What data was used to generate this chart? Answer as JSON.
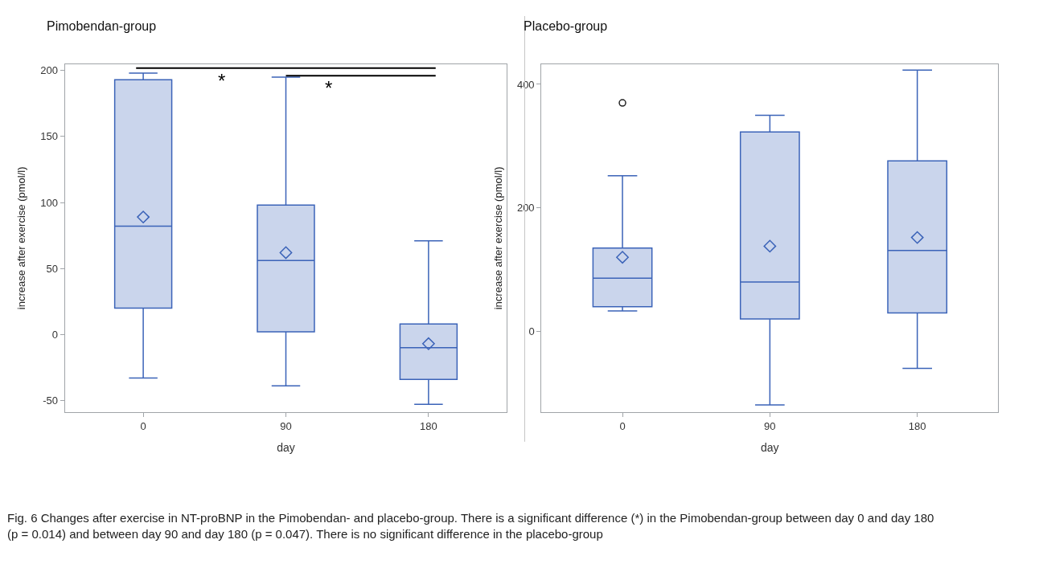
{
  "chart_data": [
    {
      "type": "box",
      "title": "Pimobendan-group",
      "xlabel": "day",
      "ylabel": "increase after exercise (pmol/l)",
      "categories": [
        "0",
        "90",
        "180"
      ],
      "ylim": [
        -59,
        205
      ],
      "yticks": [
        -50,
        0,
        50,
        100,
        150,
        200
      ],
      "color": "#3b63b8",
      "marker": "diamond",
      "boxes": [
        {
          "low": -33,
          "q1": 20,
          "median": 82,
          "q3": 193,
          "high": 198,
          "mean": 89
        },
        {
          "low": -39,
          "q1": 2,
          "median": 56,
          "q3": 98,
          "high": 195,
          "mean": 62
        },
        {
          "low": -53,
          "q1": -34,
          "median": -10,
          "q3": 8,
          "high": 71,
          "mean": -7
        }
      ],
      "annotations": [
        "*",
        "*"
      ]
    },
    {
      "type": "box",
      "title": "Placebo-group",
      "xlabel": "day",
      "ylabel": "increase after exercise (pmol/l)",
      "categories": [
        "0",
        "90",
        "180"
      ],
      "ylim": [
        -131,
        433
      ],
      "yticks": [
        0,
        200,
        400
      ],
      "color": "#3b63b8",
      "marker": "diamond",
      "boxes": [
        {
          "low": 33,
          "q1": 40,
          "median": 86,
          "q3": 135,
          "high": 252,
          "mean": 120,
          "outliers": [
            370
          ]
        },
        {
          "low": -119,
          "q1": 20,
          "median": 80,
          "q3": 323,
          "high": 350,
          "mean": 138
        },
        {
          "low": -60,
          "q1": 30,
          "median": 131,
          "q3": 276,
          "high": 423,
          "mean": 152
        }
      ],
      "annotations": [
        "Fig. 6 Changes after exercise in NT-proBNP in the Pimobendan- and placebo-group. There is a significant difference (*) in the Pimobendan-group between day 0 and day 180 (p = 0.014) and between day 90 and day 180 (p = 0.047). There is no significant difference in the placebo-group"
      ]
    }
  ]
}
